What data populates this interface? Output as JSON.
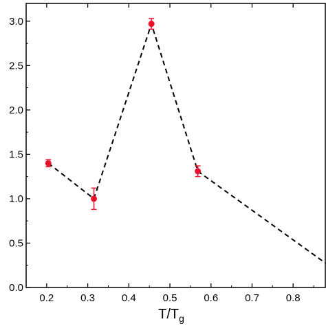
{
  "chart_data": {
    "type": "scatter",
    "xlabel": "T/T",
    "xlabel_sub": "g",
    "ylabel": "",
    "xlim": [
      0.15,
      0.88
    ],
    "ylim": [
      0.0,
      3.2
    ],
    "x_ticks": [
      0.2,
      0.3,
      0.4,
      0.5,
      0.6,
      0.7,
      0.8
    ],
    "x_tick_labels": [
      "0.2",
      "0.3",
      "0.4",
      "0.5",
      "0.6",
      "0.7",
      "0.8"
    ],
    "y_ticks": [
      0.0,
      0.5,
      1.0,
      1.5,
      2.0,
      2.5,
      3.0
    ],
    "y_tick_labels": [
      "0.0",
      "0.5",
      "1.0",
      "1.5",
      "2.0",
      "2.5",
      "3.0"
    ],
    "grid": false,
    "legend": "none",
    "series": [
      {
        "x": [
          0.204,
          0.315,
          0.455,
          0.568
        ],
        "y": [
          1.4,
          1.0,
          2.97,
          1.31
        ],
        "yerr": [
          0.04,
          0.12,
          0.06,
          0.06
        ],
        "color": "#e8102a",
        "marker": "circle"
      }
    ],
    "trend_line": {
      "style": "dashed",
      "color": "#000000",
      "x": [
        0.204,
        0.315,
        0.455,
        0.568,
        0.88
      ],
      "y": [
        1.4,
        1.0,
        2.97,
        1.31,
        0.27
      ]
    }
  }
}
